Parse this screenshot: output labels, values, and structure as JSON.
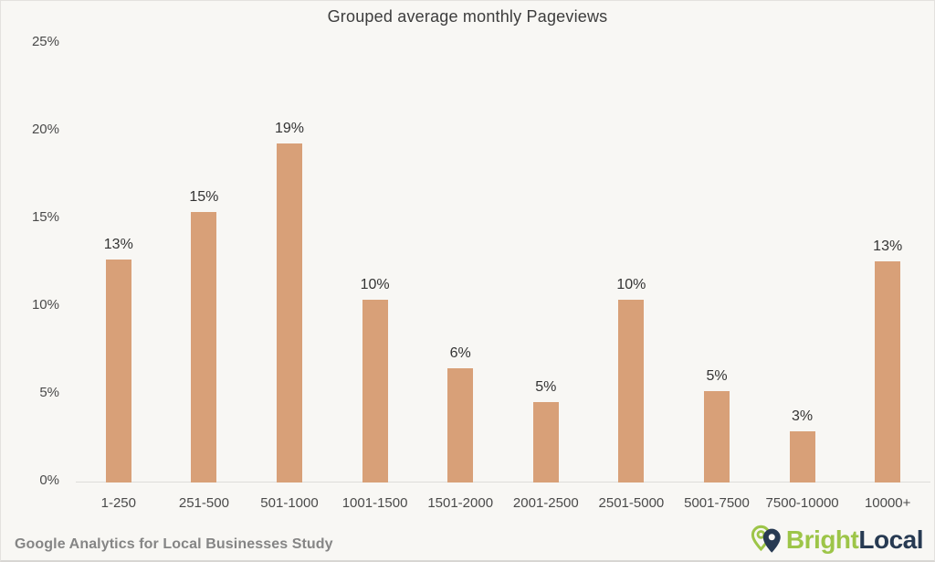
{
  "title": "Grouped average monthly Pageviews",
  "footer": {
    "source": "Google Analytics for Local Businesses Study",
    "brand": {
      "bright": "Bright",
      "local": "Local"
    }
  },
  "colors": {
    "background": "#f8f7f4",
    "bar": "#d8a078",
    "axis_line": "#dedcd9",
    "title_text": "#3d3d3d",
    "tick_text": "#4a4a4a",
    "value_label_text": "#333333",
    "footer_text": "#858585",
    "brand_green": "#9dc548",
    "brand_navy": "#273a52"
  },
  "chart_data": {
    "type": "bar",
    "title": "Grouped average monthly Pageviews",
    "categories": [
      "1-250",
      "251-500",
      "501-1000",
      "1001-1500",
      "1501-2000",
      "2001-2500",
      "2501-5000",
      "5001-7500",
      "7500-10000",
      "10000+"
    ],
    "values": [
      13,
      15,
      19,
      10,
      6,
      5,
      10,
      5,
      3,
      13
    ],
    "values_precise": [
      12.7,
      15.4,
      19.3,
      10.4,
      6.5,
      4.6,
      10.4,
      5.2,
      2.9,
      12.6
    ],
    "labels": [
      "13%",
      "15%",
      "19%",
      "10%",
      "6%",
      "5%",
      "10%",
      "5%",
      "3%",
      "13%"
    ],
    "xlabel": "",
    "ylabel": "",
    "ylim": [
      0,
      25
    ],
    "yticks": [
      "0%",
      "5%",
      "10%",
      "15%",
      "20%",
      "25%"
    ],
    "grid": false,
    "legend": false,
    "bar_color": "#d8a078",
    "source": "Google Analytics for Local Businesses Study"
  }
}
